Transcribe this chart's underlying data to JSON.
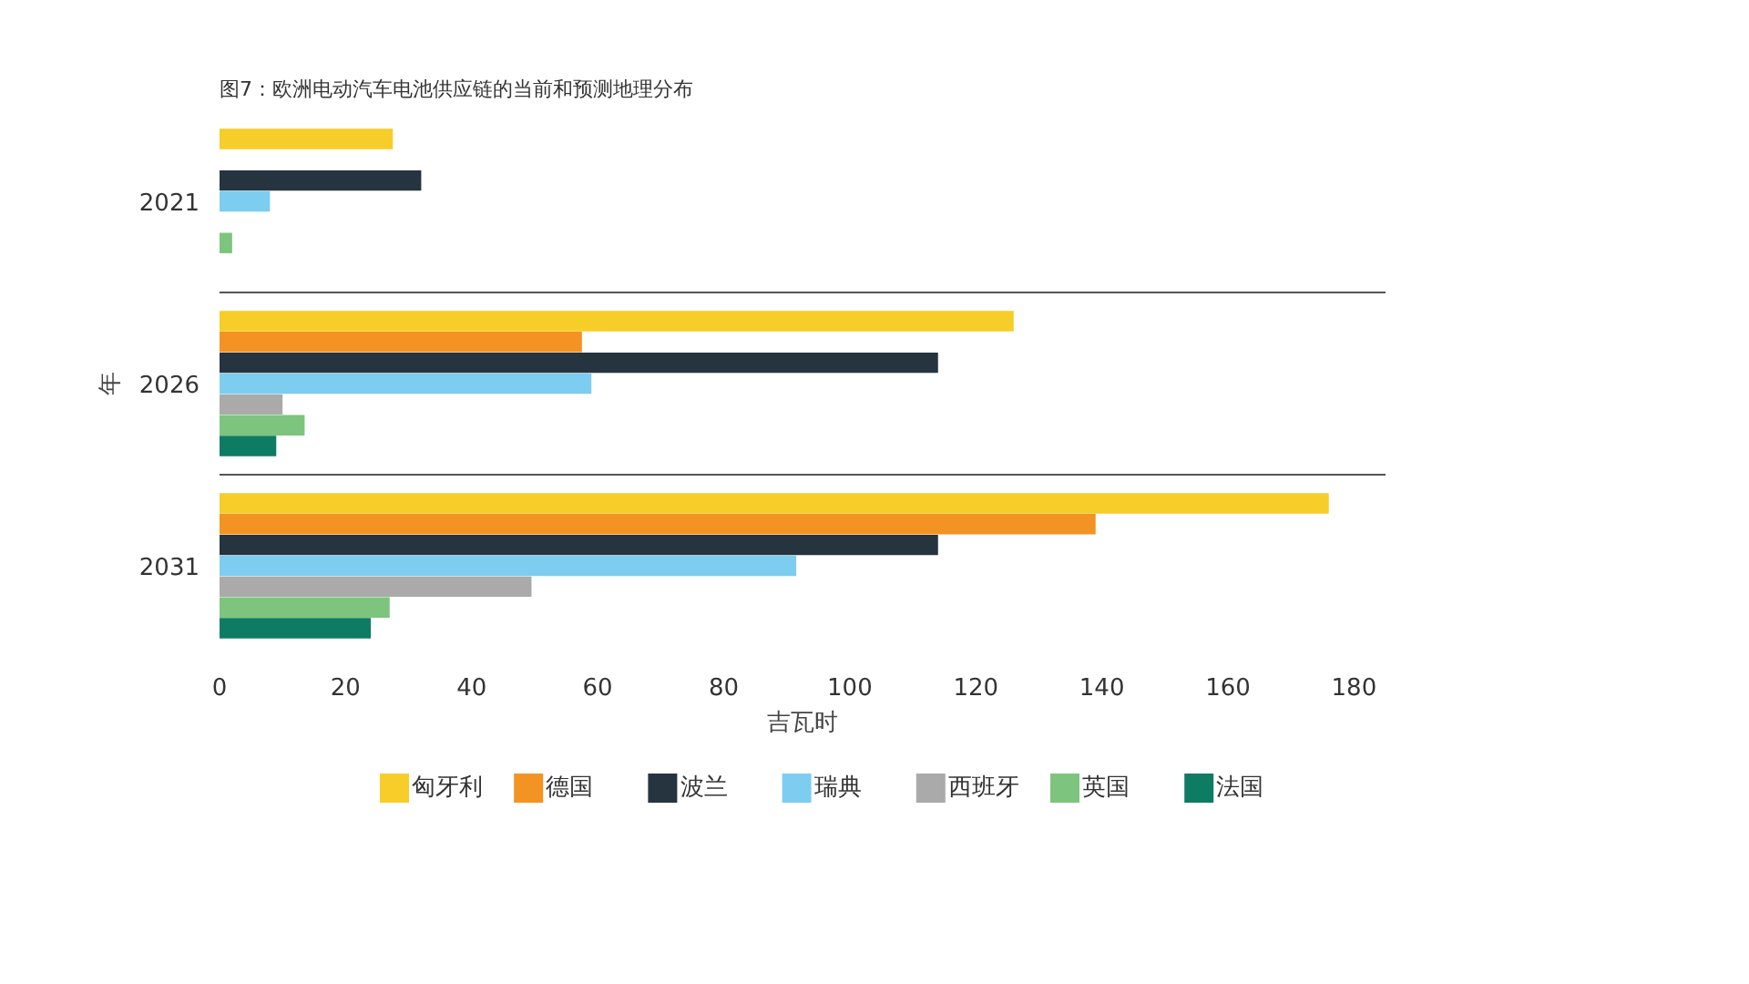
{
  "chart_data": {
    "type": "bar",
    "orientation": "horizontal",
    "title": "图7：欧洲电动汽车电池供应链的当前和预测地理分布",
    "xlabel": "吉瓦时",
    "ylabel": "年",
    "categories": [
      "2021",
      "2026",
      "2031"
    ],
    "series": [
      {
        "name": "匈牙利",
        "color": "#f7cd2a",
        "values": [
          27.5,
          126,
          176
        ]
      },
      {
        "name": "德国",
        "color": "#f39323",
        "values": [
          null,
          57.5,
          139
        ]
      },
      {
        "name": "波兰",
        "color": "#25343f",
        "values": [
          32,
          114,
          114
        ]
      },
      {
        "name": "瑞典",
        "color": "#7dcdf0",
        "values": [
          8,
          59,
          91.5
        ]
      },
      {
        "name": "西班牙",
        "color": "#aaaaaa",
        "values": [
          null,
          10,
          49.5
        ]
      },
      {
        "name": "英国",
        "color": "#7dc47e",
        "values": [
          2,
          13.5,
          27
        ]
      },
      {
        "name": "法国",
        "color": "#0e7c63",
        "values": [
          null,
          9,
          24
        ]
      }
    ],
    "xlim": [
      0,
      185
    ],
    "xticks": [
      0,
      20,
      40,
      60,
      80,
      100,
      120,
      140,
      160,
      180
    ],
    "grid": "y",
    "legend": "bottom"
  }
}
